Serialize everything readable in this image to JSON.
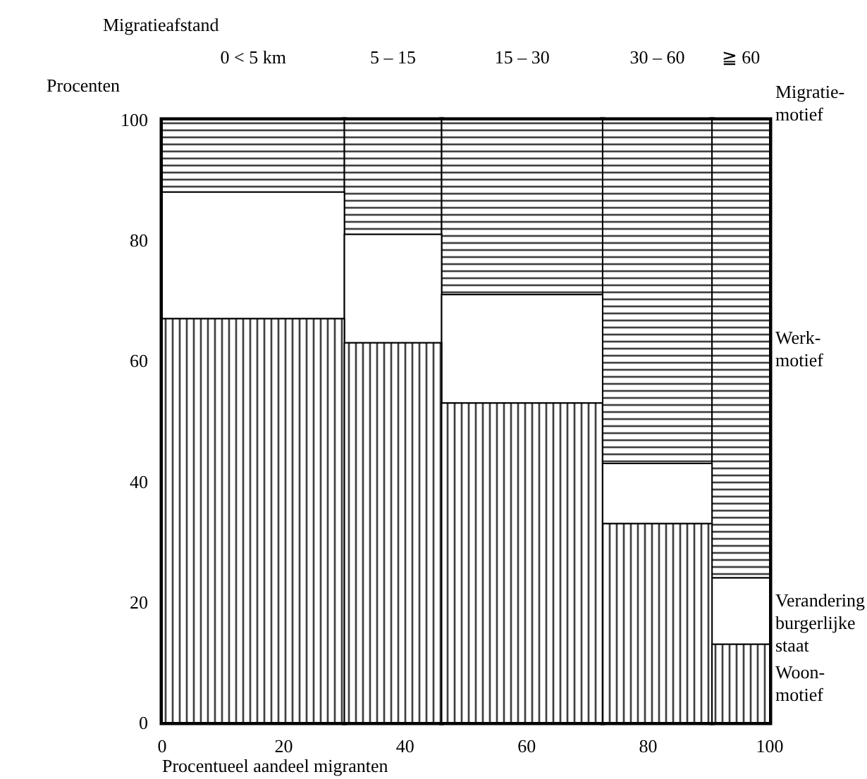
{
  "chart_data": {
    "type": "bar",
    "stacked": true,
    "title": "Migratieafstand",
    "xlabel": "Procentueel aandeel migranten",
    "ylabel": "Procenten",
    "legend_title": "Migratie-\nmotief",
    "x": [
      15,
      38,
      59.25,
      81.5,
      95.25
    ],
    "series": [
      {
        "name": "Woon-\nmotief",
        "color": "#000000",
        "values": [
          67,
          63,
          53,
          33,
          13
        ]
      },
      {
        "name": "Verandering\nburgerlijke\nstaat",
        "color": "#ffffff",
        "values": [
          21,
          18,
          18,
          10,
          11
        ]
      },
      {
        "name": "Werk-\nmotief",
        "color": "#000000",
        "values": [
          12,
          19,
          29,
          57,
          76
        ]
      }
    ],
    "annotations": [
      "0 < 5 km",
      "5 – 15",
      "15 – 30",
      "30 – 60",
      "≧ 60"
    ],
    "xlim": [
      0,
      100
    ],
    "xticks": [
      0,
      20,
      40,
      60,
      80,
      100
    ],
    "ylim": [
      0,
      100
    ],
    "yticks": [
      0,
      20,
      40,
      60,
      80,
      100
    ],
    "legend": "right"
  }
}
